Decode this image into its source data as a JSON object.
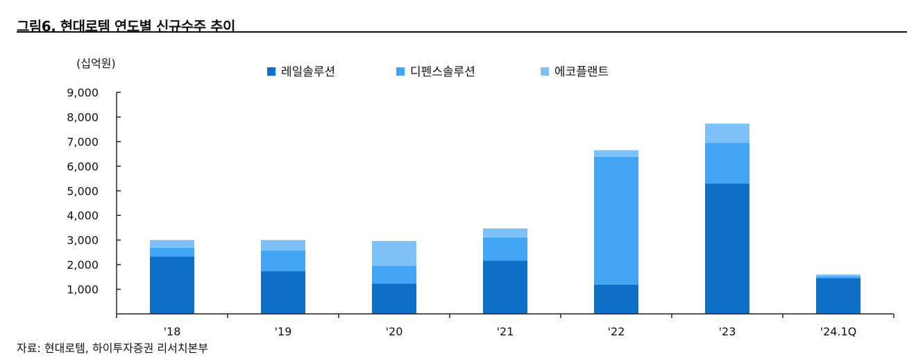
{
  "title": "그림6. 현대로템 연도별 신규수주 추이",
  "source": "자료: 현대로템, 하이투자증권 리서치본부",
  "chart_data": {
    "type": "bar",
    "stacked": true,
    "unit_label": "(십억원)",
    "categories": [
      "'18",
      "'19",
      "'20",
      "'21",
      "'22",
      "'23",
      "'24.1Q"
    ],
    "series": [
      {
        "name": "레일솔루션",
        "color": "#0d70c6",
        "values": [
          2330,
          1740,
          1230,
          2160,
          1190,
          5300,
          1450
        ]
      },
      {
        "name": "디펜스솔루션",
        "color": "#42a5f5",
        "values": [
          350,
          830,
          720,
          950,
          5190,
          1640,
          80
        ]
      },
      {
        "name": "에코플랜트",
        "color": "#7dc1f8",
        "values": [
          320,
          430,
          1010,
          360,
          270,
          790,
          70
        ]
      }
    ],
    "ylim": [
      0,
      9000
    ],
    "yticks": [
      1000,
      2000,
      3000,
      4000,
      5000,
      6000,
      7000,
      8000,
      9000
    ],
    "ytick_labels": [
      "1,000",
      "2,000",
      "3,000",
      "4,000",
      "5,000",
      "6,000",
      "7,000",
      "8,000",
      "9,000"
    ],
    "legend_position": "top",
    "grid": false
  }
}
